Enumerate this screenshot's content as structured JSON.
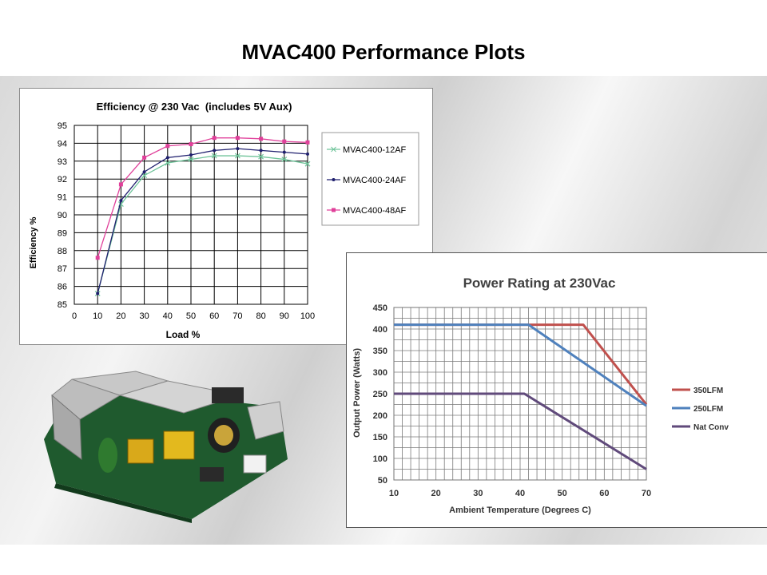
{
  "slide": {
    "title": "MVAC400 Performance Plots"
  },
  "colors": {
    "s12": "#6fc49a",
    "s24": "#1f1f6e",
    "s48": "#e0409a",
    "l350": "#c0504d",
    "l250": "#4f81bd",
    "lnat": "#604a7b"
  },
  "chart_data": [
    {
      "type": "line",
      "title": "Efficiency @ 230 Vac  (includes 5V Aux)",
      "xlabel": "Load %",
      "ylabel": "Efficiency %",
      "xlim": [
        0,
        100
      ],
      "ylim": [
        85,
        95
      ],
      "xticks": [
        "0",
        "10",
        "20",
        "30",
        "40",
        "50",
        "60",
        "70",
        "80",
        "90",
        "100"
      ],
      "yticks": [
        "85",
        "86",
        "87",
        "88",
        "89",
        "90",
        "91",
        "92",
        "93",
        "94",
        "95"
      ],
      "grid": true,
      "legend": "right",
      "x": [
        10,
        20,
        30,
        40,
        50,
        60,
        70,
        80,
        90,
        100
      ],
      "series": [
        {
          "name": "MVAC400-12AF",
          "marker": "x",
          "values": [
            85.6,
            90.6,
            92.2,
            92.9,
            93.1,
            93.3,
            93.3,
            93.25,
            93.1,
            92.85
          ]
        },
        {
          "name": "MVAC400-24AF",
          "marker": "dot",
          "values": [
            85.6,
            90.8,
            92.4,
            93.2,
            93.35,
            93.6,
            93.7,
            93.6,
            93.5,
            93.4
          ]
        },
        {
          "name": "MVAC400-48AF",
          "marker": "square",
          "values": [
            87.6,
            91.7,
            93.2,
            93.85,
            93.95,
            94.3,
            94.3,
            94.25,
            94.1,
            94.05
          ]
        }
      ]
    },
    {
      "type": "line",
      "title": "Power Rating at 230Vac",
      "xlabel": "Ambient Temperature (Degrees C)",
      "ylabel": "Output Power (Watts)",
      "xlim": [
        10,
        70
      ],
      "ylim": [
        50,
        450
      ],
      "xticks": [
        "10",
        "20",
        "30",
        "40",
        "50",
        "60",
        "70"
      ],
      "yticks": [
        "50",
        "100",
        "150",
        "200",
        "250",
        "300",
        "350",
        "400",
        "450"
      ],
      "grid": true,
      "legend": "right",
      "series": [
        {
          "name": "350LFM",
          "points": [
            [
              10,
              410
            ],
            [
              55,
              410
            ],
            [
              70,
              225
            ]
          ]
        },
        {
          "name": "250LFM",
          "points": [
            [
              10,
              410
            ],
            [
              42,
              410
            ],
            [
              70,
              222
            ]
          ]
        },
        {
          "name": "Nat Conv",
          "points": [
            [
              10,
              250
            ],
            [
              41,
              250
            ],
            [
              70,
              75
            ]
          ]
        }
      ]
    }
  ]
}
